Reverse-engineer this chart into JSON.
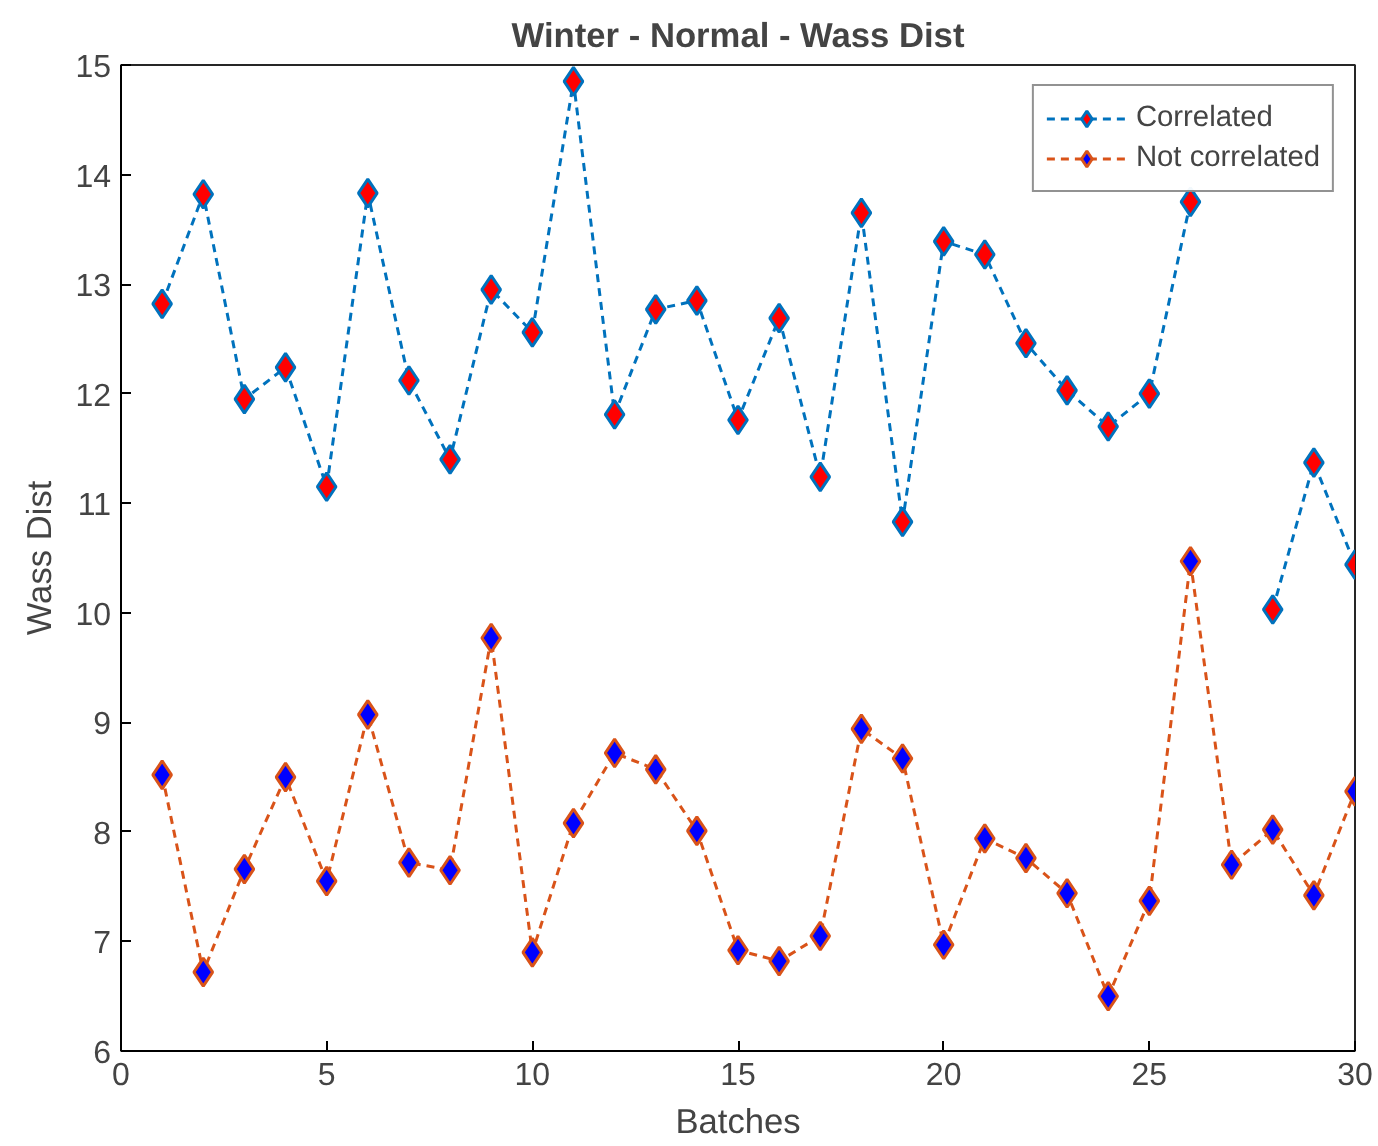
{
  "chart_data": {
    "type": "line",
    "title": "Winter - Normal - Wass Dist",
    "xlabel": "Batches",
    "ylabel": "Wass Dist",
    "x": [
      1,
      2,
      3,
      4,
      5,
      6,
      7,
      8,
      9,
      10,
      11,
      12,
      13,
      14,
      15,
      16,
      17,
      18,
      19,
      20,
      21,
      22,
      23,
      24,
      25,
      26,
      27,
      28,
      29,
      30
    ],
    "series": [
      {
        "name": "Correlated",
        "color": "#0072bd",
        "values": [
          12.82,
          13.82,
          11.95,
          12.24,
          11.15,
          13.83,
          12.12,
          11.4,
          12.95,
          12.56,
          14.85,
          11.81,
          12.77,
          12.85,
          11.76,
          12.69,
          11.24,
          13.65,
          10.83,
          13.39,
          13.27,
          12.46,
          12.03,
          11.7,
          12.0,
          13.75,
          null,
          10.03,
          11.37,
          10.44
        ]
      },
      {
        "name": "Not correlated",
        "color": "#d95319",
        "values": [
          8.52,
          6.72,
          7.66,
          8.5,
          7.55,
          9.07,
          7.72,
          7.65,
          9.77,
          6.9,
          8.08,
          8.72,
          8.57,
          8.01,
          6.92,
          6.82,
          7.05,
          8.94,
          8.67,
          6.97,
          7.94,
          7.76,
          7.44,
          6.5,
          7.37,
          10.47,
          7.7,
          8.02,
          7.42,
          8.37
        ]
      }
    ],
    "xlim": [
      0,
      30
    ],
    "xticks": [
      0,
      5,
      10,
      15,
      20,
      25,
      30
    ],
    "ylim": [
      6,
      15
    ],
    "yticks": [
      6,
      7,
      8,
      9,
      10,
      11,
      12,
      13,
      14,
      15
    ],
    "marker": "diamond",
    "line_style": "dashed",
    "legend": "top right",
    "grid": false
  }
}
